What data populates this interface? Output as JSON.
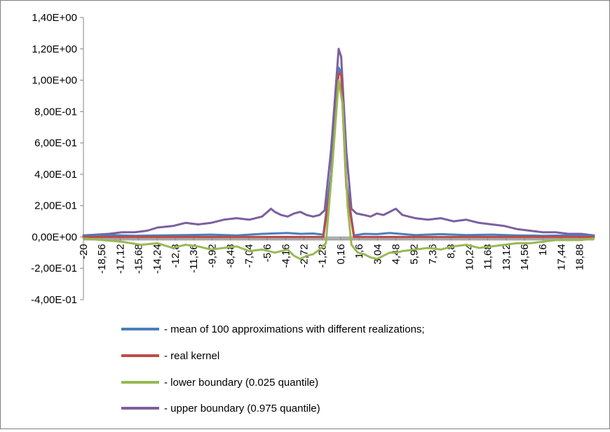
{
  "chart_data": {
    "type": "line",
    "title": "",
    "xlabel": "",
    "ylabel": "",
    "xlim": [
      -20,
      20
    ],
    "ylim": [
      -0.4,
      1.4
    ],
    "grid": false,
    "legend_position": "bottom",
    "y_ticks": [
      {
        "value": 1.4,
        "label": "1,40E+00"
      },
      {
        "value": 1.2,
        "label": "1,20E+00"
      },
      {
        "value": 1.0,
        "label": "1,00E+00"
      },
      {
        "value": 0.8,
        "label": "8,00E-01"
      },
      {
        "value": 0.6,
        "label": "6,00E-01"
      },
      {
        "value": 0.4,
        "label": "4,00E-01"
      },
      {
        "value": 0.2,
        "label": "2,00E-01"
      },
      {
        "value": 0.0,
        "label": "0,00E+00"
      },
      {
        "value": -0.2,
        "label": "-2,00E-01"
      },
      {
        "value": -0.4,
        "label": "-4,00E-01"
      }
    ],
    "x_ticks": [
      {
        "value": -20,
        "label": "-20"
      },
      {
        "value": -18.56,
        "label": "-18,56"
      },
      {
        "value": -17.12,
        "label": "-17,12"
      },
      {
        "value": -15.68,
        "label": "-15,68"
      },
      {
        "value": -14.24,
        "label": "-14,24"
      },
      {
        "value": -12.8,
        "label": "-12,8"
      },
      {
        "value": -11.36,
        "label": "-11,36"
      },
      {
        "value": -9.92,
        "label": "-9,92"
      },
      {
        "value": -8.48,
        "label": "-8,48"
      },
      {
        "value": -7.04,
        "label": "-7,04"
      },
      {
        "value": -5.6,
        "label": "-5,6"
      },
      {
        "value": -4.16,
        "label": "-4,16"
      },
      {
        "value": -2.72,
        "label": "-2,72"
      },
      {
        "value": -1.28,
        "label": "-1,28"
      },
      {
        "value": 0.16,
        "label": "0,16"
      },
      {
        "value": 1.6,
        "label": "1,6"
      },
      {
        "value": 3.04,
        "label": "3,04"
      },
      {
        "value": 4.48,
        "label": "4,48"
      },
      {
        "value": 5.92,
        "label": "5,92"
      },
      {
        "value": 7.36,
        "label": "7,36"
      },
      {
        "value": 8.8,
        "label": "8,8"
      },
      {
        "value": 10.24,
        "label": "10,24"
      },
      {
        "value": 11.68,
        "label": "11,68"
      },
      {
        "value": 13.12,
        "label": "13,12"
      },
      {
        "value": 14.56,
        "label": "14,56"
      },
      {
        "value": 16,
        "label": "16"
      },
      {
        "value": 17.44,
        "label": "17,44"
      },
      {
        "value": 18.88,
        "label": "18,88"
      }
    ],
    "series": [
      {
        "name": "- mean of 100 approximations with different realizations;",
        "color": "#4a7ebb",
        "x": [
          -20,
          -18,
          -16,
          -14,
          -12,
          -10,
          -8,
          -6,
          -4,
          -3,
          -2,
          -1.2,
          -0.6,
          0,
          0.2,
          0.6,
          1.2,
          2,
          3,
          4,
          6,
          8,
          10,
          12,
          14,
          16,
          18,
          20
        ],
        "y": [
          0.01,
          0.012,
          0.008,
          0.01,
          0.012,
          0.015,
          0.01,
          0.02,
          0.025,
          0.02,
          0.022,
          0.015,
          0.4,
          1.08,
          1.05,
          0.35,
          0.01,
          0.02,
          0.018,
          0.025,
          0.012,
          0.018,
          0.012,
          0.015,
          0.01,
          0.008,
          0.01,
          0.01
        ]
      },
      {
        "name": "- real kernel",
        "color": "#be4b48",
        "x": [
          -20,
          -2,
          -1.2,
          -0.6,
          0,
          0.2,
          0.6,
          1.2,
          2,
          20
        ],
        "y": [
          0,
          0,
          0,
          0.35,
          1.05,
          1.03,
          0.32,
          0,
          0,
          0
        ]
      },
      {
        "name": "- lower boundary (0.025 quantile)",
        "color": "#98b954",
        "x": [
          -20,
          -18.5,
          -17,
          -15.5,
          -14.2,
          -13,
          -12,
          -11,
          -10,
          -9,
          -8,
          -7,
          -6,
          -5,
          -4,
          -3.5,
          -3,
          -2.5,
          -2,
          -1.5,
          -1,
          -0.5,
          0,
          0.3,
          0.7,
          1,
          1.5,
          2,
          2.5,
          3,
          3.5,
          4,
          4.5,
          5,
          6,
          7,
          8,
          9,
          10,
          11,
          12,
          13,
          14,
          15,
          16,
          17,
          18,
          19,
          20
        ],
        "y": [
          -0.01,
          -0.02,
          -0.03,
          -0.05,
          -0.04,
          -0.07,
          -0.05,
          -0.06,
          -0.08,
          -0.07,
          -0.06,
          -0.09,
          -0.08,
          -0.1,
          -0.08,
          -0.12,
          -0.14,
          -0.12,
          -0.11,
          -0.08,
          -0.04,
          0.45,
          1.0,
          0.85,
          0.2,
          -0.05,
          -0.1,
          -0.11,
          -0.13,
          -0.14,
          -0.12,
          -0.1,
          -0.1,
          -0.09,
          -0.08,
          -0.07,
          -0.08,
          -0.06,
          -0.05,
          -0.07,
          -0.06,
          -0.05,
          -0.04,
          -0.04,
          -0.03,
          -0.02,
          -0.02,
          -0.02,
          -0.01
        ]
      },
      {
        "name": "- upper boundary (0.975 quantile)",
        "color": "#7d5fa0",
        "x": [
          -20,
          -18,
          -17,
          -16,
          -15,
          -14.2,
          -13,
          -12,
          -11,
          -10,
          -9,
          -8,
          -7,
          -6,
          -5.3,
          -5,
          -4.5,
          -4,
          -3.5,
          -3,
          -2.5,
          -2,
          -1.5,
          -1.1,
          -0.6,
          0,
          0.2,
          0.6,
          1,
          1.4,
          2,
          2.5,
          3,
          3.5,
          4,
          4.48,
          5,
          6,
          7,
          8,
          9,
          10,
          11,
          12,
          13,
          14,
          15,
          16,
          17,
          18,
          19,
          20
        ],
        "y": [
          0.01,
          0.02,
          0.03,
          0.03,
          0.04,
          0.06,
          0.07,
          0.09,
          0.08,
          0.09,
          0.11,
          0.12,
          0.11,
          0.13,
          0.18,
          0.16,
          0.14,
          0.13,
          0.15,
          0.16,
          0.14,
          0.13,
          0.14,
          0.17,
          0.55,
          1.2,
          1.15,
          0.55,
          0.18,
          0.15,
          0.14,
          0.13,
          0.15,
          0.14,
          0.16,
          0.18,
          0.14,
          0.12,
          0.11,
          0.12,
          0.1,
          0.11,
          0.09,
          0.08,
          0.07,
          0.05,
          0.04,
          0.03,
          0.03,
          0.02,
          0.02,
          0.01
        ]
      }
    ]
  }
}
